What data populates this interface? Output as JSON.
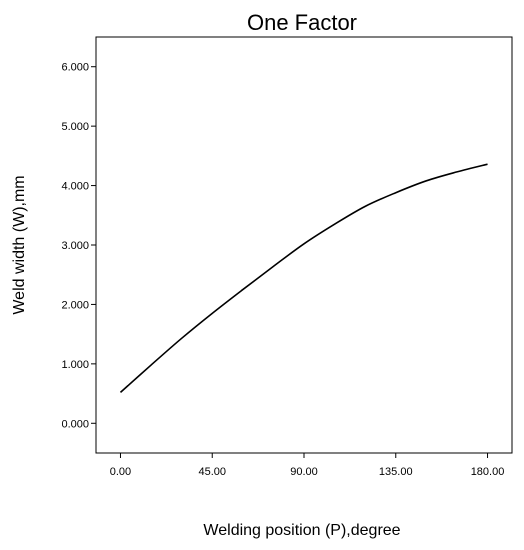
{
  "chart_data": {
    "type": "line",
    "title": "One Factor",
    "xlabel": "Welding position (P),degree",
    "ylabel": "Weld width (W),mm",
    "xlim": [
      -12,
      192
    ],
    "ylim": [
      -0.5,
      6.5
    ],
    "x_ticks": [
      0,
      45,
      90,
      135,
      180
    ],
    "x_tick_labels": [
      "0.00",
      "45.00",
      "90.00",
      "135.00",
      "180.00"
    ],
    "y_ticks": [
      0,
      1,
      2,
      3,
      4,
      5,
      6
    ],
    "y_tick_labels": [
      "0.000",
      "1.000",
      "2.000",
      "3.000",
      "4.000",
      "5.000",
      "6.000"
    ],
    "grid": false,
    "series": [
      {
        "x": [
          0,
          15,
          30,
          45,
          60,
          75,
          90,
          105,
          120,
          135,
          150,
          165,
          180
        ],
        "y": [
          0.52,
          0.98,
          1.43,
          1.85,
          2.25,
          2.64,
          3.02,
          3.35,
          3.65,
          3.88,
          4.08,
          4.23,
          4.36
        ]
      }
    ]
  }
}
